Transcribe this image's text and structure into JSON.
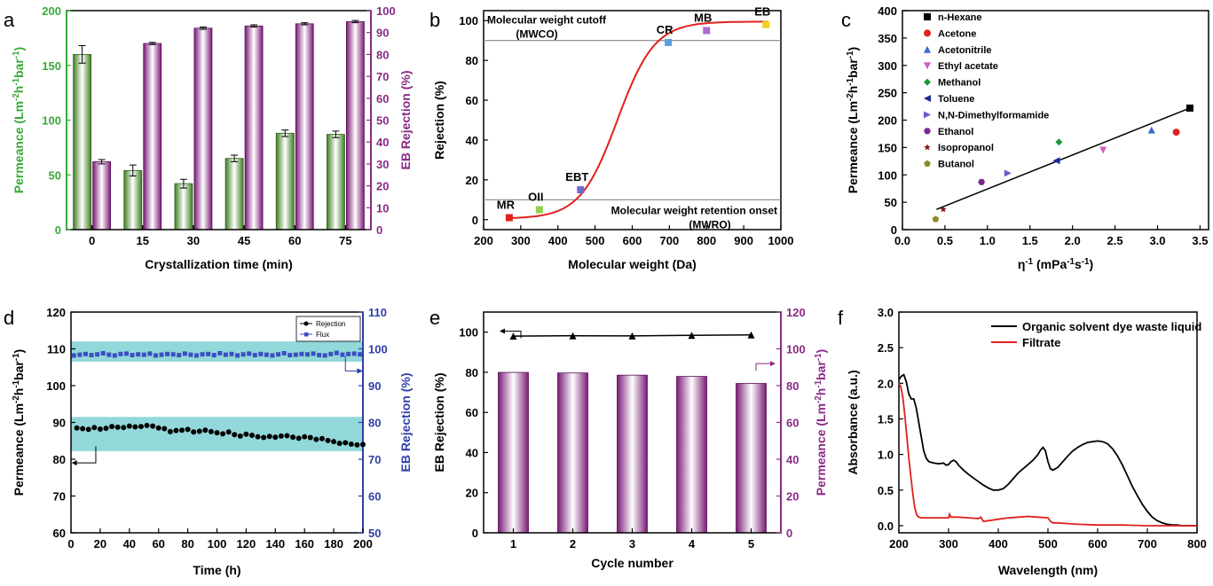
{
  "colors": {
    "green_bar": "#5a9e3a",
    "purple_bar": "#8a2a86",
    "purple_axis": "#8a2a86",
    "green_axis": "#3aa83a",
    "blue_axis": "#2f3fa8",
    "red_curve": "#e0211d",
    "band": "#7fd1d3"
  },
  "chart_data": [
    {
      "panel": "a",
      "type": "bar",
      "xlabel": "Crystallization time (min)",
      "ylabel": "Permeance (Lm-2h-1bar-1)",
      "y2label": "EB Rejection (%)",
      "categories": [
        "0",
        "15",
        "30",
        "45",
        "60",
        "75"
      ],
      "ylim": [
        0,
        200
      ],
      "yticks": [
        "0",
        "50",
        "100",
        "150",
        "200"
      ],
      "y2lim": [
        0,
        100
      ],
      "y2ticks": [
        "0",
        "10",
        "20",
        "30",
        "40",
        "50",
        "60",
        "70",
        "80",
        "90",
        "100"
      ],
      "series": [
        {
          "axis": "left",
          "values": [
            160,
            54,
            42,
            65,
            88,
            87
          ],
          "errors": [
            8,
            5,
            4,
            3,
            3,
            3
          ]
        },
        {
          "axis": "right",
          "values": [
            31,
            85,
            92,
            93,
            94,
            95
          ],
          "errors": [
            1,
            0.5,
            0.5,
            0.5,
            0.5,
            0.5
          ]
        }
      ]
    },
    {
      "panel": "b",
      "type": "line",
      "xlabel": "Molecular weight (Da)",
      "ylabel": "Rejection (%)",
      "xlim": [
        200,
        1000
      ],
      "ylim": [
        -5,
        105
      ],
      "xticks": [
        "200",
        "300",
        "400",
        "500",
        "600",
        "700",
        "800",
        "900",
        "1000"
      ],
      "yticks": [
        "0",
        "20",
        "40",
        "60",
        "80",
        "100"
      ],
      "points": [
        {
          "label": "MR",
          "x": 269,
          "y": 1,
          "color": "#e0211d"
        },
        {
          "label": "OII",
          "x": 350,
          "y": 5,
          "color": "#8ed14a"
        },
        {
          "label": "EBT",
          "x": 461,
          "y": 15,
          "color": "#6a6ad0"
        },
        {
          "label": "CR",
          "x": 697,
          "y": 89,
          "color": "#5aa0e0"
        },
        {
          "label": "MB",
          "x": 800,
          "y": 95,
          "color": "#b06ad0"
        },
        {
          "label": "EB",
          "x": 960,
          "y": 98,
          "color": "#f0d020"
        }
      ],
      "hlines": [
        {
          "y": 90,
          "label": "Molecular weight cutoff",
          "sublabel": "(MWCO)"
        },
        {
          "y": 10,
          "label": "Molecular weight retention onset",
          "sublabel": "(MWRO)"
        }
      ]
    },
    {
      "panel": "c",
      "type": "scatter",
      "xlabel": "η-1 (mPa-1s-1)",
      "ylabel": "Permeance (Lm-2h-1bar-1)",
      "xlim": [
        0,
        3.6
      ],
      "ylim": [
        0,
        400
      ],
      "xticks": [
        "0.0",
        "0.5",
        "1.0",
        "1.5",
        "2.0",
        "2.5",
        "3.0",
        "3.5"
      ],
      "yticks": [
        "0",
        "50",
        "100",
        "150",
        "200",
        "250",
        "300",
        "350",
        "400"
      ],
      "series": [
        {
          "name": "n-Hexane",
          "x": 3.38,
          "y": 222,
          "color": "#000000",
          "marker": "square"
        },
        {
          "name": "Acetone",
          "x": 3.22,
          "y": 178,
          "color": "#e0211d",
          "marker": "circle"
        },
        {
          "name": "Acetonitrile",
          "x": 2.93,
          "y": 182,
          "color": "#3a6ad0",
          "marker": "triangle-up"
        },
        {
          "name": "Ethyl acetate",
          "x": 2.36,
          "y": 145,
          "color": "#d060c0",
          "marker": "triangle-down"
        },
        {
          "name": "Methanol",
          "x": 1.84,
          "y": 160,
          "color": "#1a9a3a",
          "marker": "diamond"
        },
        {
          "name": "Toluene",
          "x": 1.81,
          "y": 126,
          "color": "#1a2a9a",
          "marker": "triangle-left"
        },
        {
          "name": "N,N-Dimethylformamide",
          "x": 1.24,
          "y": 103,
          "color": "#6a5ad0",
          "marker": "triangle-right"
        },
        {
          "name": "Ethanol",
          "x": 0.93,
          "y": 87,
          "color": "#7a2a8a",
          "marker": "hexagon"
        },
        {
          "name": "Isopropanol",
          "x": 0.48,
          "y": 37,
          "color": "#8a1a1a",
          "marker": "star"
        },
        {
          "name": "Butanol",
          "x": 0.39,
          "y": 19,
          "color": "#8a8a2a",
          "marker": "pentagon"
        }
      ],
      "fit": {
        "x": [
          0.4,
          3.38
        ],
        "y": [
          37,
          222
        ]
      }
    },
    {
      "panel": "d",
      "type": "line",
      "xlabel": "Time (h)",
      "ylabel": "Permeance (Lm-2h-1bar-1)",
      "y2label": "EB Rejection (%)",
      "xlim": [
        0,
        200
      ],
      "xticks": [
        "0",
        "20",
        "40",
        "60",
        "80",
        "100",
        "120",
        "140",
        "160",
        "180",
        "200"
      ],
      "ylim": [
        60,
        120
      ],
      "yticks": [
        "60",
        "70",
        "80",
        "90",
        "100",
        "110",
        "120"
      ],
      "y2lim": [
        50,
        110
      ],
      "y2ticks": [
        "50",
        "60",
        "70",
        "80",
        "90",
        "100",
        "110"
      ],
      "legend": [
        "Rejection",
        "Flux"
      ],
      "series": [
        {
          "name": "Rejection",
          "axis": "left",
          "x_start": 4,
          "x_step": 4,
          "values": [
            88.5,
            88.3,
            88.1,
            88.6,
            88.2,
            88.4,
            88.9,
            88.7,
            88.6,
            89.0,
            88.8,
            88.9,
            89.2,
            89.0,
            88.5,
            88.3,
            87.5,
            87.8,
            87.9,
            88.1,
            87.4,
            87.6,
            87.9,
            87.5,
            87.2,
            86.9,
            87.4,
            86.7,
            86.3,
            86.8,
            86.5,
            86.1,
            85.9,
            86.2,
            86.0,
            86.3,
            86.4,
            86.0,
            85.7,
            86.1,
            85.9,
            85.4,
            85.6,
            85.1,
            84.8,
            84.3,
            84.5,
            84.1,
            83.9,
            84.0
          ]
        },
        {
          "name": "Flux",
          "axis": "right",
          "x_start": 2,
          "x_step": 4,
          "values": [
            98.2,
            98.4,
            98.6,
            98.3,
            98.5,
            98.8,
            98.4,
            98.2,
            98.6,
            98.7,
            98.3,
            98.5,
            98.4,
            98.7,
            98.2,
            98.4,
            98.6,
            98.5,
            98.3,
            98.7,
            98.4,
            98.2,
            98.5,
            98.6,
            98.3,
            98.8,
            98.4,
            98.6,
            98.2,
            98.5,
            98.7,
            98.3,
            98.6,
            98.4,
            98.2,
            98.5,
            98.8,
            98.3,
            98.4,
            98.6,
            98.5,
            98.7,
            98.3,
            98.2,
            98.6,
            98.9,
            98.4,
            98.6,
            98.7,
            98.5
          ]
        }
      ],
      "bands": [
        {
          "axis": "right",
          "range": [
            96.5,
            102
          ]
        },
        {
          "axis": "left",
          "range": [
            82.2,
            91.5
          ]
        }
      ]
    },
    {
      "panel": "e",
      "type": "bar",
      "xlabel": "Cycle number",
      "ylabel": "EB Rejection (%)",
      "y2label": "Permeance (Lm-2h-1bar-1)",
      "categories": [
        "1",
        "2",
        "3",
        "4",
        "5"
      ],
      "ylim": [
        0,
        110
      ],
      "yticks": [
        "0",
        "20",
        "40",
        "60",
        "80",
        "100"
      ],
      "y2lim": [
        0,
        120
      ],
      "y2ticks": [
        "0",
        "20",
        "40",
        "60",
        "80",
        "100",
        "120"
      ],
      "series": [
        {
          "name": "EB Rejection",
          "axis": "left",
          "type": "line",
          "values": [
            98,
            98.2,
            98.1,
            98.4,
            98.6
          ]
        },
        {
          "name": "Permeance",
          "axis": "right",
          "type": "bar",
          "values": [
            87.2,
            86.9,
            85.7,
            85.0,
            81.2
          ]
        }
      ]
    },
    {
      "panel": "f",
      "type": "line",
      "xlabel": "Wavelength (nm)",
      "ylabel": "Absorbance (a.u.)",
      "xlim": [
        200,
        800
      ],
      "xticks": [
        "200",
        "300",
        "400",
        "500",
        "600",
        "700",
        "800"
      ],
      "ylim": [
        -0.1,
        3.0
      ],
      "yticks": [
        "0.0",
        "0.5",
        "1.0",
        "1.5",
        "2.0",
        "2.5",
        "3.0"
      ],
      "series": [
        {
          "name": "Organic solvent dye waste liquid",
          "color": "#000000",
          "x": [
            200,
            205,
            210,
            215,
            220,
            225,
            230,
            235,
            240,
            245,
            250,
            255,
            260,
            270,
            280,
            290,
            295,
            300,
            305,
            310,
            315,
            320,
            330,
            340,
            350,
            360,
            370,
            380,
            390,
            400,
            410,
            420,
            430,
            440,
            450,
            460,
            470,
            480,
            485,
            490,
            495,
            500,
            505,
            510,
            520,
            530,
            540,
            550,
            560,
            570,
            580,
            590,
            600,
            610,
            620,
            630,
            640,
            650,
            660,
            670,
            680,
            690,
            700,
            710,
            720,
            730,
            740,
            750,
            760,
            770,
            780,
            790,
            800
          ],
          "y": [
            2.05,
            2.1,
            2.12,
            2.02,
            1.85,
            1.78,
            1.78,
            1.65,
            1.45,
            1.25,
            1.05,
            0.95,
            0.9,
            0.88,
            0.87,
            0.88,
            0.85,
            0.86,
            0.9,
            0.92,
            0.9,
            0.85,
            0.78,
            0.72,
            0.67,
            0.62,
            0.57,
            0.53,
            0.5,
            0.5,
            0.52,
            0.58,
            0.66,
            0.74,
            0.8,
            0.86,
            0.92,
            1.0,
            1.06,
            1.1,
            1.05,
            0.9,
            0.8,
            0.78,
            0.82,
            0.9,
            0.98,
            1.05,
            1.1,
            1.14,
            1.17,
            1.18,
            1.19,
            1.18,
            1.15,
            1.08,
            0.98,
            0.85,
            0.7,
            0.55,
            0.42,
            0.3,
            0.2,
            0.12,
            0.07,
            0.04,
            0.02,
            0.01,
            0.01,
            0.0,
            0.0,
            0.0,
            0.0
          ]
        },
        {
          "name": "Filtrate",
          "color": "#e0211d",
          "x": [
            200,
            204,
            208,
            212,
            216,
            220,
            224,
            228,
            232,
            236,
            240,
            245,
            250,
            255,
            260,
            280,
            300,
            302,
            305,
            320,
            340,
            360,
            365,
            370,
            380,
            400,
            420,
            440,
            460,
            480,
            500,
            505,
            510,
            520,
            540,
            560,
            600,
            650,
            700,
            750,
            800
          ],
          "y": [
            2.0,
            1.95,
            1.8,
            1.55,
            1.25,
            0.95,
            0.7,
            0.45,
            0.25,
            0.15,
            0.12,
            0.11,
            0.11,
            0.11,
            0.11,
            0.11,
            0.11,
            0.16,
            0.12,
            0.12,
            0.11,
            0.1,
            0.12,
            0.06,
            0.07,
            0.09,
            0.11,
            0.12,
            0.13,
            0.12,
            0.11,
            0.06,
            0.04,
            0.04,
            0.03,
            0.02,
            0.01,
            0.01,
            0.0,
            0.0,
            0.0
          ]
        }
      ]
    }
  ]
}
